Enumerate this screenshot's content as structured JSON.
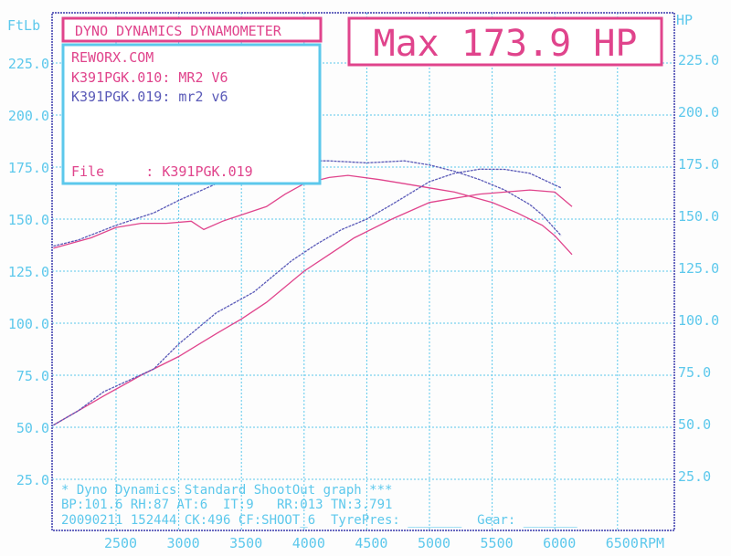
{
  "chart_data": {
    "type": "line",
    "title_box": "DYNO DYNAMICS DYNAMOMETER",
    "max_label": "Max 173.9 HP",
    "info": {
      "site": "REWORX.COM",
      "run1": "K391PGK.010: MR2 V6",
      "run2": "K391PGK.019: mr2 v6",
      "file": "File     : K391PGK.019"
    },
    "ylabel_left": "FtLb",
    "ylabel_right": "HP",
    "xlabel": "RPM",
    "yticks": [
      "25.0",
      "50.0",
      "75.0",
      "100.0",
      "125.0",
      "150.0",
      "175.0",
      "200.0",
      "225.0"
    ],
    "ytick_values": [
      25,
      50,
      75,
      100,
      125,
      150,
      175,
      200,
      225
    ],
    "xticks": [
      2500,
      3000,
      3500,
      4000,
      4500,
      5000,
      5500,
      6000,
      6500
    ],
    "xlim": [
      2000,
      7000
    ],
    "ylim": [
      0,
      249
    ],
    "grid": true,
    "footer": [
      "* Dyno Dynamics Standard ShootOut graph ***",
      "BP:101.6 RH:87 AT:6  IT:9   RR:013 TN:3.791",
      "20090211 152444 CK:496 CF:SHOOT_6  TyrePres: _______  Gear: _______"
    ],
    "colors": {
      "run010": "#e0448c",
      "run019": "#5a5ab8",
      "axis": "#5cc8ec",
      "frame": "#6a6ac0"
    },
    "series": [
      {
        "name": "K391PGK.010: MR2 V6",
        "quantity": "torque",
        "color": "#e0448c",
        "x": [
          2000,
          2300,
          2500,
          2700,
          2900,
          3100,
          3200,
          3350,
          3500,
          3700,
          3850,
          4000,
          4200,
          4350,
          4600,
          4800,
          5000,
          5200,
          5500,
          5700,
          5900,
          6000,
          6137
        ],
        "y": [
          136,
          141,
          146,
          148,
          148,
          149,
          145,
          149,
          152,
          156,
          162,
          167,
          170,
          171,
          169,
          167,
          165,
          163,
          158,
          153,
          147,
          142,
          133
        ]
      },
      {
        "name": "K391PGK.019: mr2 v6",
        "quantity": "torque",
        "color": "#5a5ab8",
        "x": [
          2000,
          2200,
          2500,
          2800,
          3000,
          3300,
          3600,
          3800,
          3950,
          4050,
          4200,
          4500,
          4800,
          5000,
          5200,
          5400,
          5600,
          5800,
          5900,
          6050
        ],
        "y": [
          137,
          140,
          147,
          153,
          159,
          167,
          170,
          172,
          168,
          178,
          178,
          177,
          178,
          176,
          173,
          169,
          164,
          157,
          152,
          142
        ]
      },
      {
        "name": "K391PGK.010: MR2 V6",
        "quantity": "power",
        "color": "#e0448c",
        "x": [
          2000,
          2200,
          2400,
          2700,
          3000,
          3300,
          3500,
          3700,
          4000,
          4200,
          4400,
          4700,
          5000,
          5200,
          5400,
          5600,
          5800,
          6000,
          6137
        ],
        "y": [
          51,
          58,
          65,
          75,
          84,
          95,
          102,
          110,
          125,
          133,
          141,
          150,
          158,
          160,
          162,
          163,
          164,
          163,
          156
        ]
      },
      {
        "name": "K391PGK.019: mr2 v6",
        "quantity": "power",
        "color": "#5a5ab8",
        "x": [
          2000,
          2200,
          2400,
          2800,
          3000,
          3300,
          3600,
          3900,
          4100,
          4300,
          4500,
          4700,
          5000,
          5200,
          5400,
          5600,
          5800,
          6050
        ],
        "y": [
          51,
          58,
          67,
          78,
          90,
          105,
          115,
          130,
          138,
          145,
          150,
          157,
          168,
          172,
          174,
          173.9,
          172,
          165
        ]
      }
    ]
  }
}
